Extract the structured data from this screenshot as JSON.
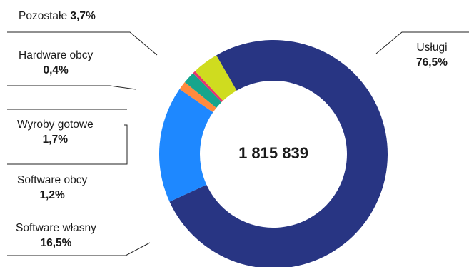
{
  "chart_data": {
    "type": "pie",
    "center_label": "1 815 839",
    "slices": [
      {
        "label": "Usługi",
        "value": 76.5,
        "value_label": "76,5%",
        "color": "#283583"
      },
      {
        "label": "Software własny",
        "value": 16.5,
        "value_label": "16,5%",
        "color": "#1e88ff"
      },
      {
        "label": "Software obcy",
        "value": 1.2,
        "value_label": "1,2%",
        "color": "#ff8a3d"
      },
      {
        "label": "Wyroby gotowe",
        "value": 1.7,
        "value_label": "1,7%",
        "color": "#16a58c"
      },
      {
        "label": "Hardware obcy",
        "value": 0.4,
        "value_label": "0,4%",
        "color": "#e8336e"
      },
      {
        "label": "Pozostałe",
        "value": 3.7,
        "value_label": "3,7%",
        "color": "#cfdc1f"
      }
    ]
  }
}
